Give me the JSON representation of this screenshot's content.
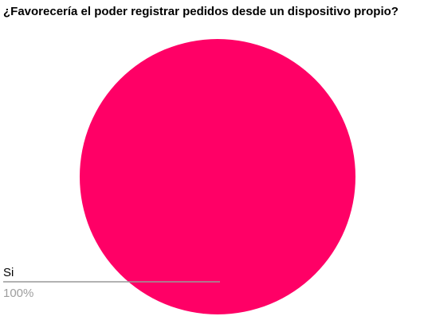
{
  "chart_data": {
    "type": "pie",
    "title": "¿Favorecería el poder registrar pedidos desde un dispositivo propio?",
    "slices": [
      {
        "label": "Si",
        "value": 100,
        "percent_label": "100%",
        "color": "#ff0066"
      }
    ],
    "legend": "none",
    "leader_line_color": "#999999"
  }
}
